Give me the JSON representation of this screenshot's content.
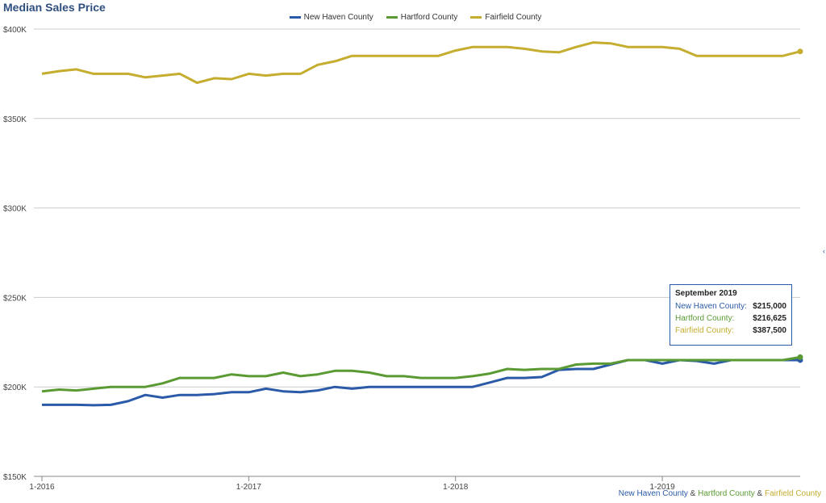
{
  "chart_data": {
    "type": "line",
    "title": "Median Sales Price",
    "x": [
      "1-2016",
      "2-2016",
      "3-2016",
      "4-2016",
      "5-2016",
      "6-2016",
      "7-2016",
      "8-2016",
      "9-2016",
      "10-2016",
      "11-2016",
      "12-2016",
      "1-2017",
      "2-2017",
      "3-2017",
      "4-2017",
      "5-2017",
      "6-2017",
      "7-2017",
      "8-2017",
      "9-2017",
      "10-2017",
      "11-2017",
      "12-2017",
      "1-2018",
      "2-2018",
      "3-2018",
      "4-2018",
      "5-2018",
      "6-2018",
      "7-2018",
      "8-2018",
      "9-2018",
      "10-2018",
      "11-2018",
      "12-2018",
      "1-2019",
      "2-2019",
      "3-2019",
      "4-2019",
      "5-2019",
      "6-2019",
      "7-2019",
      "8-2019",
      "9-2019"
    ],
    "xticks": [
      "1-2016",
      "1-2017",
      "1-2018",
      "1-2019"
    ],
    "yticks": [
      "$150K",
      "$200K",
      "$250K",
      "$300K",
      "$350K",
      "$400K"
    ],
    "ylim": [
      150000,
      400000
    ],
    "legend_position": "top-center",
    "series": [
      {
        "name": "New Haven County",
        "color": "#2a5aa8",
        "values": [
          190000,
          190000,
          190000,
          189750,
          190000,
          192000,
          195500,
          194000,
          195500,
          195500,
          196000,
          197000,
          197000,
          199000,
          197500,
          197000,
          198000,
          200000,
          199000,
          200000,
          200000,
          200000,
          200000,
          200000,
          200000,
          200000,
          202500,
          205000,
          205000,
          205500,
          209500,
          210000,
          210000,
          212500,
          215000,
          215000,
          213000,
          215000,
          214500,
          213000,
          215000,
          215000,
          215000,
          215000,
          215000
        ]
      },
      {
        "name": "Hartford County",
        "color": "#5a9a32",
        "values": [
          197500,
          198500,
          198000,
          199000,
          200000,
          200000,
          200000,
          202000,
          205000,
          205000,
          205000,
          207000,
          206000,
          206000,
          208000,
          206000,
          207000,
          209000,
          209000,
          208000,
          206000,
          206000,
          205000,
          205000,
          205000,
          206000,
          207500,
          210000,
          209500,
          210000,
          210000,
          212500,
          213000,
          213000,
          215000,
          215000,
          215000,
          215000,
          215000,
          215000,
          215000,
          215000,
          215000,
          215000,
          216625
        ]
      },
      {
        "name": "Fairfield County",
        "color": "#c4ad2f",
        "values": [
          375000,
          376500,
          377500,
          375000,
          375000,
          375000,
          373000,
          374000,
          375000,
          370000,
          372500,
          372000,
          375000,
          374000,
          375000,
          375000,
          380000,
          382000,
          385000,
          385000,
          385000,
          385000,
          385000,
          385000,
          388000,
          390000,
          390000,
          390000,
          389000,
          387500,
          387000,
          390000,
          392500,
          392000,
          390000,
          390000,
          390000,
          389000,
          385000,
          385000,
          385000,
          385000,
          385000,
          385000,
          387500
        ]
      }
    ]
  },
  "tooltip": {
    "title": "September 2019",
    "rows": [
      {
        "label": "New Haven County:",
        "value": "$215,000",
        "color": "#2a5aa8"
      },
      {
        "label": "Hartford County:",
        "value": "$216,625",
        "color": "#5a9a32"
      },
      {
        "label": "Fairfield County:",
        "value": "$387,500",
        "color": "#c4ad2f"
      }
    ]
  },
  "footer": {
    "new_haven": "New Haven County",
    "amp1": " & ",
    "hartford": "Hartford County",
    "amp2": " & ",
    "fairfield": "Fairfield County"
  }
}
